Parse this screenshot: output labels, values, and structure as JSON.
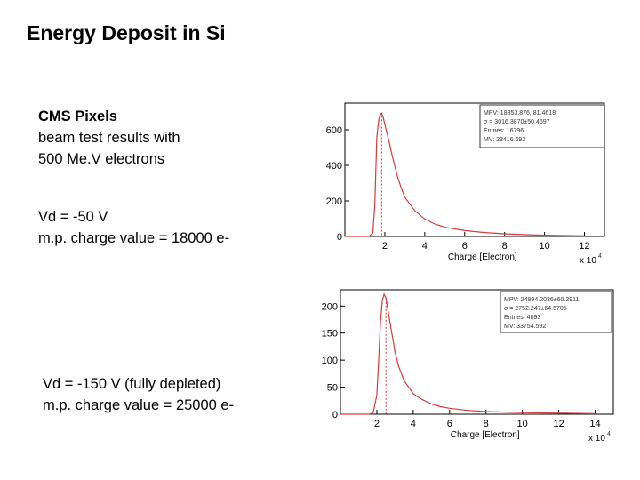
{
  "slide": {
    "title": "Energy Deposit in Si",
    "block1": [
      "CMS Pixels",
      "beam test results with",
      "500 Me.V electrons"
    ],
    "block2": [
      "Vd  = -50 V",
      "m.p. charge value = 18000 e-"
    ],
    "block3": [
      "Vd  = -150 V  (fully depleted)",
      "m.p. charge value = 25000 e-"
    ]
  },
  "chart_data": [
    {
      "type": "histogram",
      "xlabel": "Charge [Electron]",
      "x_multiplier": "x 10",
      "x_multiplier_exp": "4",
      "xlim": [
        0,
        13
      ],
      "ylim": [
        0,
        750
      ],
      "xticks": [
        2,
        4,
        6,
        8,
        10,
        12
      ],
      "yticks": [
        0,
        200,
        400,
        600
      ],
      "mpv_marker": 1.84,
      "grid": false,
      "legend": "top-right",
      "stats": [
        "MPV: 18353.876, 81.4618",
        "σ = 3016.3870±50.4697",
        "Entries: 16796",
        "MV: 23416.692"
      ],
      "series": [
        {
          "x": [
            0,
            1.2,
            1.4,
            1.5,
            1.6,
            1.7,
            1.8,
            1.9,
            2.0,
            2.2,
            2.4,
            2.6,
            2.8,
            3.0,
            3.5,
            4.0,
            4.5,
            5.0,
            6.0,
            7.0,
            8.0,
            9.0,
            10.0,
            11.0,
            12.0
          ],
          "values": [
            0,
            0,
            30,
            200,
            600,
            680,
            700,
            690,
            640,
            560,
            450,
            360,
            290,
            230,
            150,
            100,
            70,
            55,
            35,
            24,
            16,
            11,
            8,
            5,
            3
          ]
        },
        {
          "x": [
            0,
            1.2,
            1.4,
            1.5,
            1.6,
            1.7,
            1.8,
            1.9,
            2.0,
            2.2,
            2.4,
            2.6,
            2.8,
            3.0,
            3.5,
            4.0,
            4.5,
            5.0,
            6.0,
            7.0,
            8.0,
            9.0,
            10.0,
            11.0,
            12.0
          ],
          "values": [
            0,
            0,
            20,
            180,
            560,
            660,
            690,
            680,
            630,
            540,
            440,
            350,
            280,
            220,
            145,
            98,
            70,
            52,
            33,
            22,
            15,
            10,
            7,
            5,
            3
          ]
        }
      ]
    },
    {
      "type": "histogram",
      "xlabel": "Charge [Electron]",
      "x_multiplier": "x 10",
      "x_multiplier_exp": "4",
      "xlim": [
        0,
        15
      ],
      "ylim": [
        0,
        230
      ],
      "xticks": [
        2,
        4,
        6,
        8,
        10,
        12,
        14
      ],
      "yticks": [
        0,
        50,
        100,
        150,
        200
      ],
      "mpv_marker": 2.5,
      "grid": false,
      "legend": "top-right",
      "stats": [
        "MPV: 24994.2036±60.2911",
        "σ = 2752.247±64.5705",
        "Entries: 4093",
        "MV: 33754.592"
      ],
      "series": [
        {
          "x": [
            0,
            1.6,
            1.8,
            2.0,
            2.1,
            2.2,
            2.3,
            2.4,
            2.5,
            2.6,
            2.8,
            3.0,
            3.2,
            3.5,
            4.0,
            4.5,
            5.0,
            5.5,
            6.0,
            7.0,
            8.0,
            9.0,
            10.0,
            12.0,
            14.0
          ],
          "values": [
            0,
            0,
            5,
            40,
            110,
            180,
            215,
            225,
            220,
            200,
            160,
            120,
            90,
            65,
            40,
            28,
            20,
            15,
            12,
            8,
            5,
            4,
            3,
            2,
            1
          ]
        },
        {
          "x": [
            0,
            1.6,
            1.8,
            2.0,
            2.1,
            2.2,
            2.3,
            2.4,
            2.5,
            2.6,
            2.8,
            3.0,
            3.2,
            3.5,
            4.0,
            4.5,
            5.0,
            5.5,
            6.0,
            7.0,
            8.0,
            9.0,
            10.0,
            12.0,
            14.0
          ],
          "values": [
            0,
            0,
            3,
            35,
            100,
            170,
            210,
            222,
            215,
            195,
            155,
            115,
            88,
            62,
            38,
            27,
            19,
            14,
            11,
            7,
            5,
            4,
            3,
            2,
            1
          ]
        }
      ]
    }
  ]
}
